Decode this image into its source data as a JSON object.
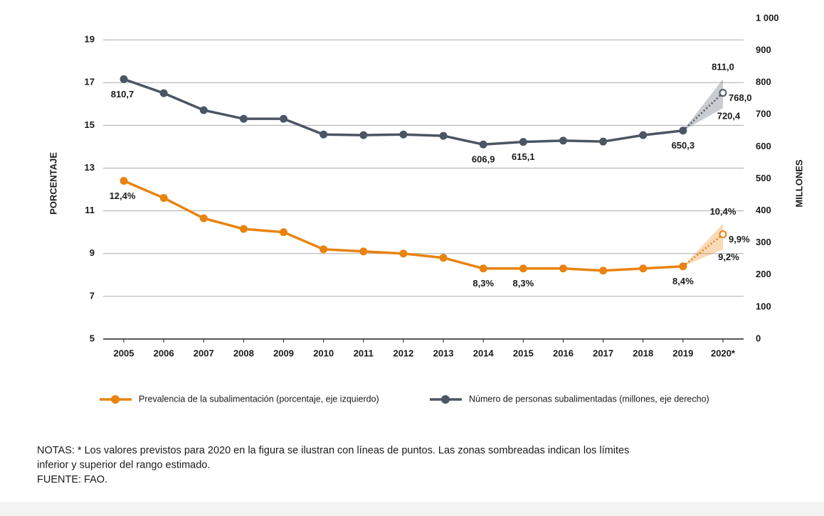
{
  "chart_data": {
    "type": "line",
    "categories": [
      "2005",
      "2006",
      "2007",
      "2008",
      "2009",
      "2010",
      "2011",
      "2012",
      "2013",
      "2014",
      "2015",
      "2016",
      "2017",
      "2018",
      "2019",
      "2020*"
    ],
    "projected": [
      false,
      false,
      false,
      false,
      false,
      false,
      false,
      false,
      false,
      false,
      false,
      false,
      false,
      false,
      false,
      true
    ],
    "ylabel": "PORCENTAJE",
    "y2label": "MILLONES",
    "ylim": [
      5,
      20
    ],
    "yticks": [
      5,
      7,
      9,
      11,
      13,
      15,
      17,
      19
    ],
    "y2lim": [
      0,
      1000
    ],
    "y2ticks": [
      0,
      100,
      200,
      300,
      400,
      500,
      600,
      700,
      800,
      900,
      {
        "value": 1000,
        "label": "1 000"
      }
    ],
    "grid": true,
    "series": [
      {
        "name": "Prevalencia de la subalimentación (porcentaje, eje izquierdo)",
        "color": "#e8830f",
        "axis": "y",
        "values": [
          12.4,
          11.6,
          10.65,
          10.15,
          10.0,
          9.2,
          9.1,
          9.0,
          8.8,
          8.3,
          8.3,
          8.3,
          8.2,
          8.3,
          8.4,
          9.9
        ],
        "value_labels": [
          "12,4%",
          null,
          null,
          null,
          null,
          null,
          null,
          null,
          null,
          "8,3%",
          "8,3%",
          null,
          null,
          null,
          "8,4%",
          "9,9%"
        ],
        "lower": [
          null,
          null,
          null,
          null,
          null,
          null,
          null,
          null,
          null,
          null,
          null,
          null,
          null,
          null,
          null,
          9.2
        ],
        "lower_labels": [
          null,
          null,
          null,
          null,
          null,
          null,
          null,
          null,
          null,
          null,
          null,
          null,
          null,
          null,
          null,
          "9,2%"
        ],
        "upper": [
          null,
          null,
          null,
          null,
          null,
          null,
          null,
          null,
          null,
          null,
          null,
          null,
          null,
          null,
          null,
          10.4
        ],
        "upper_labels": [
          null,
          null,
          null,
          null,
          null,
          null,
          null,
          null,
          null,
          null,
          null,
          null,
          null,
          null,
          null,
          "10,4%"
        ]
      },
      {
        "name": "Número de personas subalimentadas (millones, eje derecho)",
        "color": "#4b5563",
        "axis": "y2",
        "values": [
          810.7,
          767,
          714,
          687,
          687,
          638,
          636,
          638,
          634,
          606.9,
          615.1,
          619,
          616,
          636,
          650.3,
          768.0
        ],
        "value_labels": [
          "810,7",
          null,
          null,
          null,
          null,
          null,
          null,
          null,
          null,
          "606,9",
          "615,1",
          null,
          null,
          null,
          "650,3",
          "768,0"
        ],
        "lower": [
          null,
          null,
          null,
          null,
          null,
          null,
          null,
          null,
          null,
          null,
          null,
          null,
          null,
          null,
          null,
          720.4
        ],
        "lower_labels": [
          null,
          null,
          null,
          null,
          null,
          null,
          null,
          null,
          null,
          null,
          null,
          null,
          null,
          null,
          null,
          "720,4"
        ],
        "upper": [
          null,
          null,
          null,
          null,
          null,
          null,
          null,
          null,
          null,
          null,
          null,
          null,
          null,
          null,
          null,
          811.0
        ],
        "upper_labels": [
          null,
          null,
          null,
          null,
          null,
          null,
          null,
          null,
          null,
          null,
          null,
          null,
          null,
          null,
          null,
          "811,0"
        ]
      }
    ],
    "notes": [
      "NOTAS: * Los valores previstos para 2020 en la figura se ilustran con líneas de puntos. Las zonas sombreadas indican los límites",
      "inferior y superior del rango estimado.",
      "FUENTE: FAO."
    ]
  }
}
